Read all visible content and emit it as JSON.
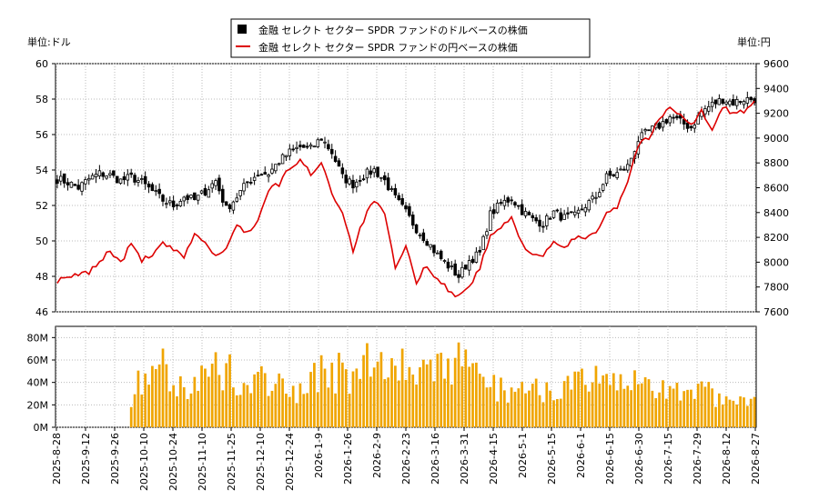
{
  "chart_data": {
    "type": "candlestick+line+bar",
    "legend": {
      "placement": "top-center",
      "entries": [
        {
          "label": "金融 セレクト セクター SPDR ファンドのドルベースの株価",
          "marker": "square",
          "color": "#000000"
        },
        {
          "label": "金融 セレクト セクター SPDR ファンドの円ベースの株価",
          "marker": "line",
          "color": "#dd0000"
        }
      ]
    },
    "left_axis": {
      "unit_label": "単位:ドル",
      "range": [
        46,
        60
      ],
      "ticks": [
        "60",
        "58",
        "56",
        "54",
        "52",
        "50",
        "48",
        "46"
      ]
    },
    "right_axis": {
      "unit_label": "単位:円",
      "range": [
        7600,
        9600
      ],
      "ticks": [
        "9600",
        "9400",
        "9200",
        "9000",
        "8800",
        "8600",
        "8400",
        "8200",
        "8000",
        "7800",
        "7600"
      ]
    },
    "volume_axis": {
      "range": [
        0,
        90000000
      ],
      "ticks": [
        "80M",
        "60M",
        "40M",
        "20M",
        "0M"
      ]
    },
    "x_ticks": [
      "2025-8-28",
      "2025-9-12",
      "2025-9-26",
      "2025-10-10",
      "2025-10-24",
      "2025-11-10",
      "2025-11-25",
      "2025-12-10",
      "2025-12-24",
      "2026-1-9",
      "2026-1-26",
      "2026-2-9",
      "2026-2-23",
      "2026-3-16",
      "2026-3-31",
      "2026-4-15",
      "2026-5-1",
      "2026-5-15",
      "2026-6-1",
      "2026-6-15",
      "2026-6-30",
      "2026-7-15",
      "2026-7-29",
      "2026-8-12",
      "2026-8-27"
    ],
    "grid": true,
    "price_usd_keypoints": [
      [
        0,
        53.5
      ],
      [
        3,
        53.3
      ],
      [
        6,
        53.0
      ],
      [
        9,
        53.5
      ],
      [
        12,
        53.8
      ],
      [
        15,
        53.7
      ],
      [
        18,
        53.4
      ],
      [
        21,
        53.6
      ],
      [
        24,
        53.3
      ],
      [
        27,
        52.8
      ],
      [
        30,
        52.3
      ],
      [
        33,
        52.0
      ],
      [
        36,
        52.5
      ],
      [
        39,
        52.3
      ],
      [
        42,
        52.8
      ],
      [
        45,
        53.4
      ],
      [
        48,
        51.8
      ],
      [
        51,
        52.5
      ],
      [
        54,
        53.3
      ],
      [
        57,
        53.8
      ],
      [
        60,
        53.8
      ],
      [
        63,
        54.5
      ],
      [
        66,
        55.0
      ],
      [
        69,
        55.3
      ],
      [
        72,
        55.2
      ],
      [
        75,
        55.8
      ],
      [
        78,
        55.0
      ],
      [
        81,
        53.6
      ],
      [
        84,
        53.2
      ],
      [
        87,
        53.7
      ],
      [
        90,
        54.0
      ],
      [
        93,
        53.4
      ],
      [
        96,
        52.4
      ],
      [
        99,
        51.6
      ],
      [
        102,
        50.7
      ],
      [
        105,
        50.0
      ],
      [
        108,
        49.2
      ],
      [
        111,
        48.6
      ],
      [
        114,
        48.0
      ],
      [
        117,
        48.9
      ],
      [
        120,
        49.3
      ],
      [
        123,
        51.5
      ],
      [
        126,
        52.1
      ],
      [
        129,
        52.4
      ],
      [
        132,
        51.7
      ],
      [
        135,
        51.2
      ],
      [
        138,
        51.0
      ],
      [
        141,
        51.6
      ],
      [
        144,
        51.3
      ],
      [
        147,
        51.4
      ],
      [
        150,
        52.0
      ],
      [
        153,
        52.5
      ],
      [
        156,
        53.6
      ],
      [
        159,
        53.8
      ],
      [
        162,
        54.2
      ],
      [
        165,
        55.7
      ],
      [
        168,
        56.2
      ],
      [
        171,
        56.5
      ],
      [
        174,
        57.0
      ],
      [
        177,
        56.7
      ],
      [
        180,
        56.4
      ],
      [
        183,
        57.3
      ],
      [
        186,
        57.7
      ],
      [
        189,
        58.0
      ],
      [
        192,
        57.8
      ],
      [
        195,
        58.0
      ],
      [
        198,
        58.0
      ]
    ],
    "price_jpy_keypoints": [
      [
        0,
        7850
      ],
      [
        3,
        7870
      ],
      [
        6,
        7900
      ],
      [
        9,
        7920
      ],
      [
        12,
        8000
      ],
      [
        15,
        8100
      ],
      [
        18,
        7990
      ],
      [
        21,
        8150
      ],
      [
        24,
        8020
      ],
      [
        27,
        8050
      ],
      [
        30,
        8150
      ],
      [
        33,
        8100
      ],
      [
        36,
        8030
      ],
      [
        39,
        8240
      ],
      [
        42,
        8150
      ],
      [
        45,
        8050
      ],
      [
        48,
        8100
      ],
      [
        51,
        8300
      ],
      [
        54,
        8240
      ],
      [
        57,
        8330
      ],
      [
        60,
        8580
      ],
      [
        63,
        8630
      ],
      [
        66,
        8760
      ],
      [
        69,
        8820
      ],
      [
        72,
        8710
      ],
      [
        75,
        8810
      ],
      [
        78,
        8560
      ],
      [
        81,
        8400
      ],
      [
        84,
        8100
      ],
      [
        87,
        8340
      ],
      [
        90,
        8500
      ],
      [
        93,
        8380
      ],
      [
        96,
        7950
      ],
      [
        99,
        8120
      ],
      [
        102,
        7840
      ],
      [
        105,
        7980
      ],
      [
        108,
        7860
      ],
      [
        111,
        7780
      ],
      [
        114,
        7720
      ],
      [
        117,
        7810
      ],
      [
        120,
        7950
      ],
      [
        123,
        8210
      ],
      [
        126,
        8280
      ],
      [
        129,
        8350
      ],
      [
        132,
        8150
      ],
      [
        135,
        8070
      ],
      [
        138,
        8050
      ],
      [
        141,
        8150
      ],
      [
        144,
        8120
      ],
      [
        147,
        8190
      ],
      [
        150,
        8200
      ],
      [
        153,
        8250
      ],
      [
        156,
        8400
      ],
      [
        159,
        8450
      ],
      [
        162,
        8650
      ],
      [
        165,
        8950
      ],
      [
        168,
        9000
      ],
      [
        171,
        9150
      ],
      [
        174,
        9250
      ],
      [
        177,
        9200
      ],
      [
        180,
        9100
      ],
      [
        183,
        9220
      ],
      [
        186,
        9050
      ],
      [
        189,
        9250
      ],
      [
        192,
        9200
      ],
      [
        195,
        9220
      ],
      [
        198,
        9280
      ]
    ],
    "volume_keypoints": [
      [
        0,
        0
      ],
      [
        20,
        0
      ],
      [
        21,
        30000000
      ],
      [
        25,
        45000000
      ],
      [
        29,
        60000000
      ],
      [
        33,
        40000000
      ],
      [
        37,
        35000000
      ],
      [
        41,
        45000000
      ],
      [
        45,
        50000000
      ],
      [
        49,
        55000000
      ],
      [
        53,
        35000000
      ],
      [
        57,
        38000000
      ],
      [
        61,
        45000000
      ],
      [
        65,
        30000000
      ],
      [
        69,
        28000000
      ],
      [
        73,
        45000000
      ],
      [
        77,
        55000000
      ],
      [
        81,
        45000000
      ],
      [
        85,
        50000000
      ],
      [
        89,
        55000000
      ],
      [
        93,
        60000000
      ],
      [
        97,
        65000000
      ],
      [
        101,
        55000000
      ],
      [
        105,
        50000000
      ],
      [
        109,
        48000000
      ],
      [
        113,
        58000000
      ],
      [
        117,
        50000000
      ],
      [
        121,
        38000000
      ],
      [
        125,
        35000000
      ],
      [
        129,
        32000000
      ],
      [
        133,
        36000000
      ],
      [
        137,
        35000000
      ],
      [
        141,
        40000000
      ],
      [
        145,
        35000000
      ],
      [
        149,
        38000000
      ],
      [
        153,
        40000000
      ],
      [
        157,
        38000000
      ],
      [
        161,
        35000000
      ],
      [
        165,
        40000000
      ],
      [
        169,
        38000000
      ],
      [
        173,
        35000000
      ],
      [
        177,
        32000000
      ],
      [
        181,
        34000000
      ],
      [
        185,
        30000000
      ],
      [
        189,
        25000000
      ],
      [
        193,
        32000000
      ],
      [
        198,
        28000000
      ]
    ]
  }
}
